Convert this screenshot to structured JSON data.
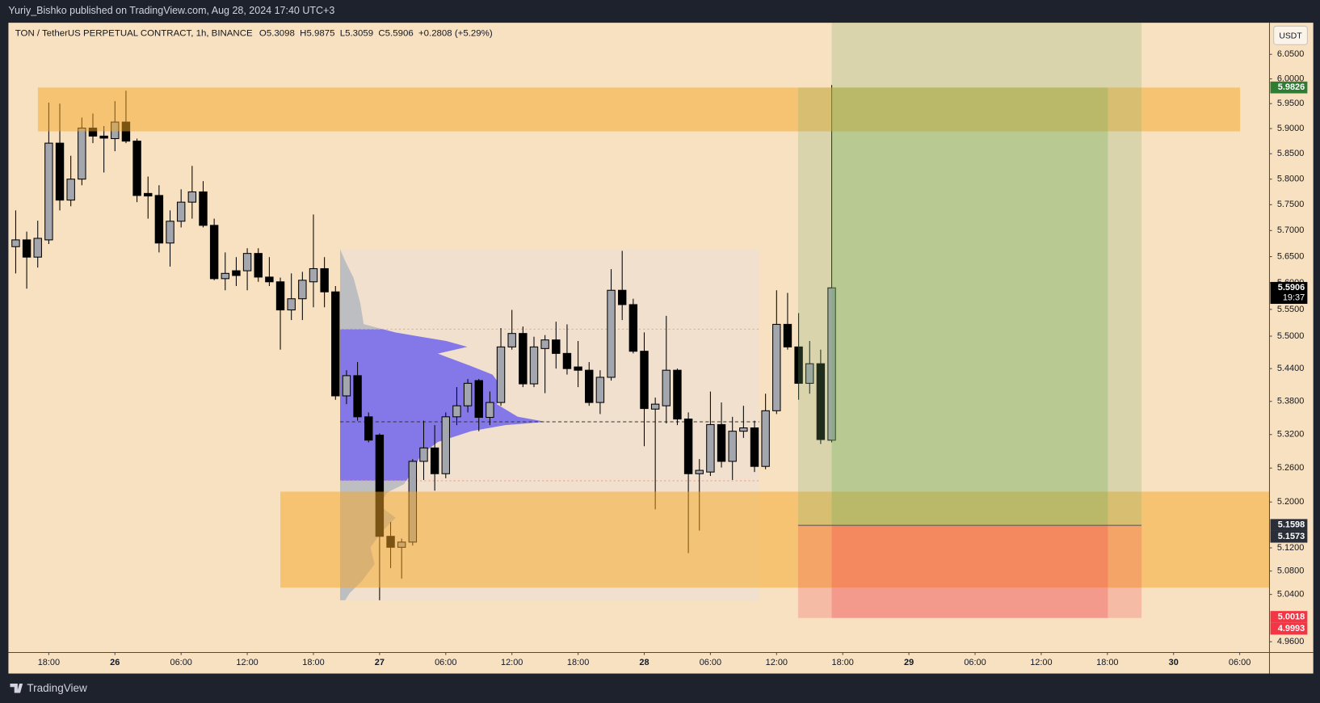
{
  "header": {
    "author": "Yuriy_Bishko published on TradingView.com, Aug 28, 2024 17:40 UTC+3",
    "brand": "TradingView"
  },
  "chart_data": {
    "type": "candlestick",
    "symbol": "TON / TetherUS PERPETUAL CONTRACT, 1h, BINANCE",
    "ohlc_prefixes": [
      "O",
      "H",
      "L",
      "C"
    ],
    "change": "+0.2808 (+5.29%)",
    "currency": "USDT",
    "open": [
      5.669,
      5.682,
      5.649,
      5.682,
      5.871,
      5.759,
      5.8,
      5.901,
      5.885,
      5.88,
      5.913,
      5.875,
      5.772,
      5.768,
      5.676,
      5.718,
      5.755,
      5.775,
      5.71,
      5.608,
      5.623,
      5.623,
      5.656,
      5.611,
      5.602,
      5.549,
      5.57,
      5.602,
      5.627,
      5.583,
      5.39,
      5.427,
      5.352,
      5.319,
      5.14,
      5.121,
      5.13,
      5.272,
      5.296,
      5.25,
      5.352,
      5.372,
      5.418,
      5.351,
      5.378,
      5.48,
      5.505,
      5.412,
      5.477,
      5.493,
      5.468,
      5.443,
      5.437,
      5.378,
      5.424,
      5.586,
      5.559,
      5.472,
      5.366,
      5.372,
      5.437,
      5.348,
      5.25,
      5.253,
      5.338,
      5.272,
      5.326,
      5.332,
      5.263,
      5.363,
      5.522,
      5.48,
      5.413,
      5.449,
      5.3098
    ],
    "high": [
      5.739,
      5.698,
      5.719,
      5.952,
      5.95,
      5.846,
      5.922,
      5.93,
      5.905,
      5.955,
      5.976,
      5.88,
      5.805,
      5.788,
      5.739,
      5.78,
      5.826,
      5.796,
      5.723,
      5.658,
      5.649,
      5.666,
      5.666,
      5.649,
      5.61,
      5.618,
      5.621,
      5.731,
      5.649,
      5.594,
      5.437,
      5.452,
      5.36,
      5.322,
      5.165,
      5.136,
      5.276,
      5.345,
      5.337,
      5.36,
      5.406,
      5.421,
      5.421,
      5.398,
      5.515,
      5.549,
      5.518,
      5.499,
      5.502,
      5.527,
      5.522,
      5.491,
      5.452,
      5.437,
      5.626,
      5.661,
      5.57,
      5.507,
      5.387,
      5.538,
      5.44,
      5.36,
      5.276,
      5.398,
      5.378,
      5.352,
      5.372,
      5.345,
      5.394,
      5.586,
      5.581,
      5.543,
      5.491,
      5.475,
      5.9875
    ],
    "low": [
      5.618,
      5.589,
      5.629,
      5.674,
      5.739,
      5.747,
      5.788,
      5.871,
      5.813,
      5.855,
      5.871,
      5.755,
      5.723,
      5.658,
      5.631,
      5.706,
      5.723,
      5.706,
      5.605,
      5.586,
      5.594,
      5.586,
      5.602,
      5.594,
      5.475,
      5.53,
      5.53,
      5.554,
      5.554,
      5.383,
      5.375,
      5.345,
      5.306,
      5.03,
      5.085,
      5.067,
      5.124,
      5.239,
      5.22,
      5.242,
      5.337,
      5.36,
      5.326,
      5.337,
      5.372,
      5.475,
      5.406,
      5.406,
      5.395,
      5.44,
      5.429,
      5.406,
      5.372,
      5.357,
      5.418,
      5.53,
      5.468,
      5.299,
      5.187,
      5.34,
      5.337,
      5.111,
      5.15,
      5.246,
      5.261,
      5.239,
      5.314,
      5.253,
      5.258,
      5.357,
      5.475,
      5.383,
      5.394,
      5.303,
      5.3059
    ],
    "close": [
      5.682,
      5.649,
      5.685,
      5.871,
      5.759,
      5.8,
      5.901,
      5.885,
      5.881,
      5.913,
      5.875,
      5.768,
      5.767,
      5.676,
      5.718,
      5.755,
      5.775,
      5.71,
      5.608,
      5.618,
      5.614,
      5.656,
      5.611,
      5.602,
      5.549,
      5.57,
      5.605,
      5.627,
      5.583,
      5.39,
      5.427,
      5.352,
      5.31,
      5.14,
      5.121,
      5.13,
      5.272,
      5.296,
      5.25,
      5.352,
      5.372,
      5.413,
      5.351,
      5.378,
      5.48,
      5.505,
      5.412,
      5.48,
      5.493,
      5.468,
      5.44,
      5.437,
      5.378,
      5.424,
      5.586,
      5.559,
      5.472,
      5.367,
      5.375,
      5.437,
      5.348,
      5.25,
      5.256,
      5.338,
      5.272,
      5.326,
      5.332,
      5.263,
      5.363,
      5.522,
      5.48,
      5.413,
      5.449,
      5.311,
      5.5906
    ],
    "up_color": "#a4a6ae",
    "down_color": "#000000",
    "xlim": [
      -0.66,
      113.7
    ],
    "xticks": [
      {
        "value": 3,
        "label": "18:00"
      },
      {
        "value": 9,
        "label": "26"
      },
      {
        "value": 15,
        "label": "06:00"
      },
      {
        "value": 21,
        "label": "12:00"
      },
      {
        "value": 27,
        "label": "18:00"
      },
      {
        "value": 33,
        "label": "27"
      },
      {
        "value": 39,
        "label": "06:00"
      },
      {
        "value": 45,
        "label": "12:00"
      },
      {
        "value": 51,
        "label": "18:00"
      },
      {
        "value": 57,
        "label": "28"
      },
      {
        "value": 63,
        "label": "06:00"
      },
      {
        "value": 69,
        "label": "12:00"
      },
      {
        "value": 75,
        "label": "18:00"
      },
      {
        "value": 81,
        "label": "29"
      },
      {
        "value": 87,
        "label": "06:00"
      },
      {
        "value": 93,
        "label": "12:00"
      },
      {
        "value": 99,
        "label": "18:00"
      },
      {
        "value": 105,
        "label": "30"
      },
      {
        "value": 111,
        "label": "06:00"
      }
    ],
    "ylim": [
      4.942,
      6.115
    ],
    "log_scale": true,
    "yticks": [
      {
        "value": 6.05,
        "label": "6.0500"
      },
      {
        "value": 6.0,
        "label": "6.0000"
      },
      {
        "value": 5.95,
        "label": "5.9500"
      },
      {
        "value": 5.9,
        "label": "5.9000"
      },
      {
        "value": 5.85,
        "label": "5.8500"
      },
      {
        "value": 5.8,
        "label": "5.8000"
      },
      {
        "value": 5.75,
        "label": "5.7500"
      },
      {
        "value": 5.7,
        "label": "5.7000"
      },
      {
        "value": 5.65,
        "label": "5.6500"
      },
      {
        "value": 5.6,
        "label": "5.6000"
      },
      {
        "value": 5.55,
        "label": "5.5500"
      },
      {
        "value": 5.5,
        "label": "5.5000"
      },
      {
        "value": 5.44,
        "label": "5.4400"
      },
      {
        "value": 5.38,
        "label": "5.3800"
      },
      {
        "value": 5.32,
        "label": "5.3200"
      },
      {
        "value": 5.26,
        "label": "5.2600"
      },
      {
        "value": 5.2,
        "label": "5.2000"
      },
      {
        "value": 5.12,
        "label": "5.1200"
      },
      {
        "value": 5.08,
        "label": "5.0800"
      },
      {
        "value": 5.04,
        "label": "5.0400"
      },
      {
        "value": 4.96,
        "label": "4.9600"
      }
    ],
    "price_tags": [
      {
        "value": 5.9826,
        "color": "#2e7d32"
      },
      {
        "value": 5.5906,
        "color": "#000000",
        "countdown": "19:37"
      },
      {
        "value": 5.1598,
        "color": "#2a2e39"
      },
      {
        "value": 5.1573,
        "color": "#2a2e39"
      },
      {
        "value": 5.0018,
        "color": "#f23645"
      },
      {
        "value": 4.9993,
        "color": "#f23645"
      }
    ]
  }
}
